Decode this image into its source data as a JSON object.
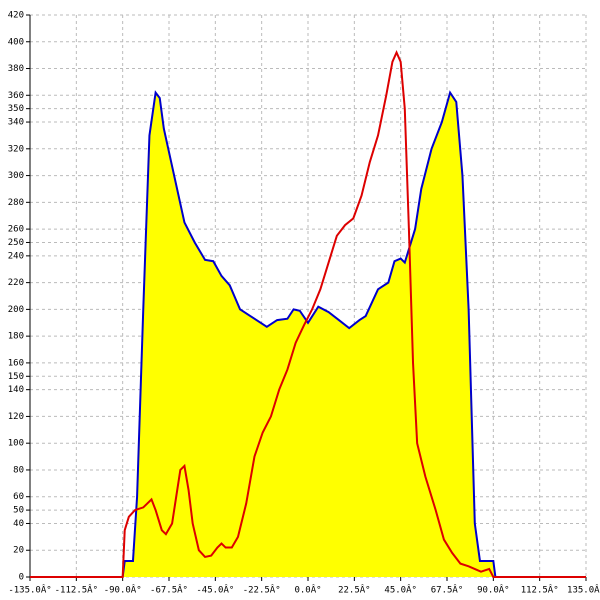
{
  "chart_data": {
    "type": "area-line",
    "xlim": [
      -135,
      135
    ],
    "xticks": [
      {
        "value": -135,
        "label": "-135.0Â°"
      },
      {
        "value": -112.5,
        "label": "-112.5Â°"
      },
      {
        "value": -90,
        "label": "-90.0Â°"
      },
      {
        "value": -67.5,
        "label": "-67.5Â°"
      },
      {
        "value": -45,
        "label": "-45.0Â°"
      },
      {
        "value": -22.5,
        "label": "-22.5Â°"
      },
      {
        "value": 0,
        "label": "0.0Â°"
      },
      {
        "value": 22.5,
        "label": "22.5Â°"
      },
      {
        "value": 45,
        "label": "45.0Â°"
      },
      {
        "value": 67.5,
        "label": "67.5Â°"
      },
      {
        "value": 90,
        "label": "90.0Â°"
      },
      {
        "value": 112.5,
        "label": "112.5Â°"
      },
      {
        "value": 135,
        "label": "135.0Â°"
      }
    ],
    "ylim": [
      0,
      420
    ],
    "yticks": [
      0,
      20,
      40,
      50,
      60,
      80,
      100,
      120,
      140,
      150,
      160,
      180,
      200,
      220,
      240,
      250,
      260,
      280,
      300,
      320,
      340,
      350,
      360,
      380,
      400,
      420
    ],
    "grid": true,
    "series": [
      {
        "color": "#0000cc",
        "fill": "#ffff00",
        "x": [
          -90,
          -89,
          -85,
          -83,
          -80,
          -77,
          -74,
          -72,
          -70,
          -65,
          -60,
          -55,
          -50,
          -46,
          -42,
          -38,
          -33,
          -28,
          -20,
          -15,
          -10,
          -7,
          -4,
          0,
          5,
          10,
          15,
          20,
          25,
          28,
          34,
          39,
          42,
          45,
          47,
          52,
          55,
          60,
          65,
          69,
          72,
          75,
          78,
          81,
          83.5,
          90,
          91
        ],
        "values": [
          0,
          12,
          12,
          60,
          200,
          330,
          362,
          358,
          335,
          300,
          265,
          250,
          237,
          236,
          225,
          218,
          200,
          195,
          187,
          192,
          193,
          200,
          199,
          190,
          202,
          198,
          192,
          186,
          192,
          195,
          215,
          220,
          236,
          238,
          235,
          260,
          290,
          320,
          340,
          362,
          355,
          300,
          200,
          40,
          12,
          12,
          0
        ]
      },
      {
        "color": "#dd0000",
        "x": [
          -135,
          -90,
          -89,
          -87,
          -84,
          -80,
          -76,
          -74,
          -71,
          -69,
          -66,
          -64,
          -62,
          -60,
          -58,
          -56,
          -53,
          -50,
          -47,
          -44,
          -42,
          -40,
          -37,
          -34,
          -30,
          -26,
          -22,
          -18,
          -14,
          -10,
          -6,
          -2,
          2,
          6,
          10,
          14,
          18,
          22,
          26,
          30,
          34,
          38,
          41,
          43,
          45,
          47,
          49,
          51,
          53,
          57,
          62,
          66,
          70,
          74,
          78,
          84,
          88,
          90,
          135
        ],
        "values": [
          0,
          0,
          35,
          45,
          50,
          52,
          58,
          50,
          35,
          32,
          40,
          60,
          80,
          83,
          65,
          40,
          20,
          15,
          16,
          22,
          25,
          22,
          22,
          30,
          55,
          90,
          108,
          120,
          140,
          155,
          175,
          188,
          200,
          215,
          235,
          255,
          263,
          268,
          285,
          310,
          330,
          360,
          385,
          392,
          385,
          350,
          260,
          160,
          100,
          75,
          50,
          28,
          18,
          10,
          8,
          4,
          6,
          0,
          0
        ]
      }
    ]
  }
}
